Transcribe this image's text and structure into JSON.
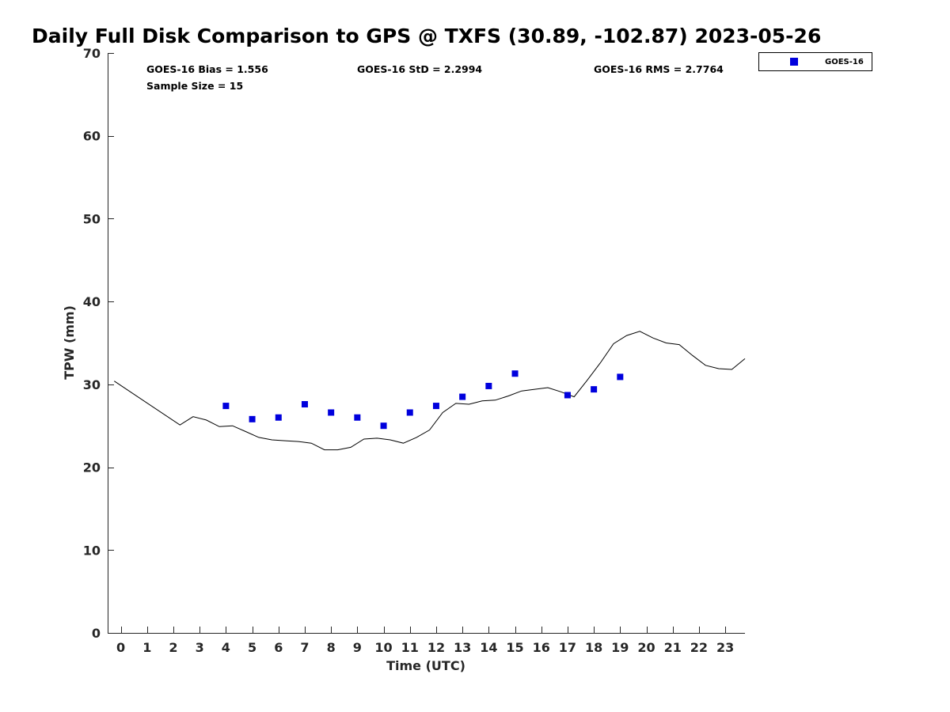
{
  "chart_data": {
    "type": "scatter",
    "title": "Daily Full Disk Comparison to GPS @ TXFS (30.89, -102.87) 2023-05-26",
    "xlabel": "Time (UTC)",
    "ylabel": "TPW (mm)",
    "xlim": [
      -0.5,
      23.75
    ],
    "ylim": [
      0,
      70
    ],
    "x_ticks": [
      0,
      1,
      2,
      3,
      4,
      5,
      6,
      7,
      8,
      9,
      10,
      11,
      12,
      13,
      14,
      15,
      16,
      17,
      18,
      19,
      20,
      21,
      22,
      23
    ],
    "x_tick_labels": [
      "0",
      "1",
      "2",
      "3",
      "4",
      "5",
      "6",
      "7",
      "8",
      "9",
      "10",
      "11",
      "12",
      "13",
      "14",
      "15",
      "16",
      "17",
      "18",
      "19",
      "20",
      "21",
      "22",
      "23"
    ],
    "y_ticks": [
      0,
      10,
      20,
      30,
      40,
      50,
      60,
      70
    ],
    "y_tick_labels": [
      "0",
      "10",
      "20",
      "30",
      "40",
      "50",
      "60",
      "70"
    ],
    "series": [
      {
        "name": "GPS",
        "type": "line",
        "color": "#000000",
        "x": [
          -0.25,
          2.25,
          2.75,
          3.25,
          3.75,
          4.25,
          4.75,
          5.25,
          5.75,
          6.25,
          6.75,
          7.25,
          7.75,
          8.25,
          8.75,
          9.25,
          9.75,
          10.25,
          10.75,
          11.25,
          11.75,
          12.25,
          12.75,
          13.25,
          13.75,
          14.25,
          14.75,
          15.25,
          15.75,
          16.25,
          16.75,
          17.25,
          17.75,
          18.25,
          18.75,
          19.25,
          19.75,
          20.25,
          20.75,
          21.25,
          21.75,
          22.25,
          22.75,
          23.25,
          23.75
        ],
        "y": [
          30.4,
          25.1,
          26.1,
          25.7,
          24.9,
          25.0,
          24.3,
          23.6,
          23.3,
          23.2,
          23.1,
          22.9,
          22.1,
          22.1,
          22.4,
          23.4,
          23.5,
          23.3,
          22.9,
          23.6,
          24.5,
          26.6,
          27.7,
          27.6,
          28.0,
          28.1,
          28.6,
          29.2,
          29.4,
          29.6,
          29.1,
          28.5,
          30.5,
          32.6,
          34.9,
          35.9,
          36.4,
          35.6,
          35.0,
          34.8,
          33.5,
          32.3,
          31.9,
          31.8,
          33.1
        ]
      },
      {
        "name": "GOES-16",
        "type": "scatter",
        "marker": "square",
        "color": "#0000dd",
        "x": [
          4,
          5,
          6,
          7,
          8,
          9,
          10,
          11,
          12,
          13,
          14,
          15,
          17,
          18,
          19
        ],
        "y": [
          27.4,
          25.8,
          26.0,
          27.6,
          26.6,
          26.0,
          25.0,
          26.6,
          27.4,
          28.5,
          29.8,
          31.3,
          28.7,
          29.4,
          30.9
        ]
      }
    ],
    "legend": {
      "entries": [
        "GOES-16"
      ],
      "placement": "top-right outside"
    },
    "annotations": {
      "bias": "GOES-16 Bias = 1.556",
      "std": "GOES-16 StD = 2.2994",
      "rms": "GOES-16 RMS = 2.7764",
      "sample": "Sample Size = 15"
    }
  }
}
